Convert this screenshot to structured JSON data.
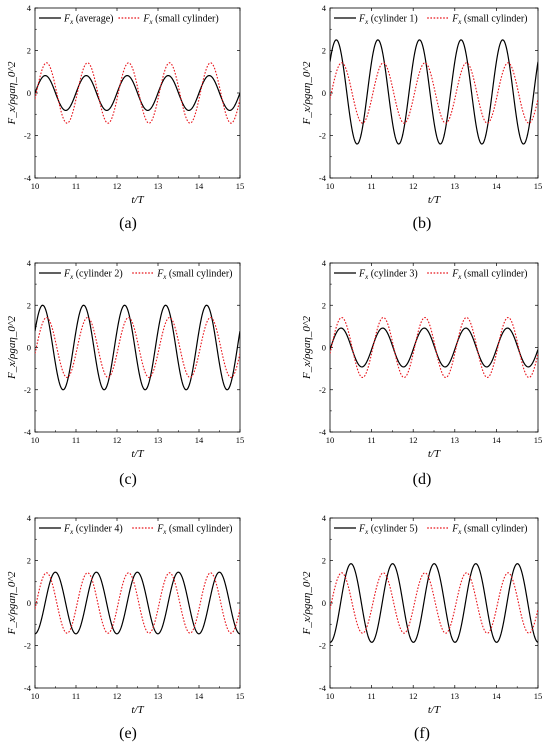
{
  "colors": {
    "primary": "#000000",
    "reference": "#e8141b"
  },
  "axes": {
    "x_label": "t/T",
    "y_label": "F_x/ρgaη_0^2",
    "xlim": [
      10,
      15
    ],
    "ylim": [
      -4,
      4
    ],
    "x_ticks": [
      "10",
      "11",
      "12",
      "13",
      "14",
      "15"
    ],
    "y_ticks": [
      "-4",
      "-2",
      "0",
      "2",
      "4"
    ]
  },
  "chart_data": [
    {
      "type": "line",
      "panel": "(a)",
      "legend_placement": "top",
      "xlim": [
        10,
        15
      ],
      "ylim": [
        -4,
        4
      ],
      "grid": false,
      "series": [
        {
          "name": "(average)",
          "style": "solid",
          "color": "#000000",
          "amplitude": 0.82,
          "phase": 0.0,
          "offset": 0.0
        },
        {
          "name": "(small cylinder)",
          "style": "dotted",
          "color": "#e8141b",
          "amplitude": 1.42,
          "phase": -0.2,
          "offset": 0.0
        }
      ]
    },
    {
      "type": "line",
      "panel": "(b)",
      "legend_placement": "top",
      "xlim": [
        10,
        15
      ],
      "ylim": [
        -4,
        4
      ],
      "grid": false,
      "series": [
        {
          "name": "(cylinder 1)",
          "style": "solid",
          "color": "#000000",
          "amplitude": 2.45,
          "phase": 0.62,
          "offset": 0.05
        },
        {
          "name": "(small cylinder)",
          "style": "dotted",
          "color": "#e8141b",
          "amplitude": 1.42,
          "phase": -0.2,
          "offset": 0.0
        }
      ]
    },
    {
      "type": "line",
      "panel": "(c)",
      "legend_placement": "top",
      "xlim": [
        10,
        15
      ],
      "ylim": [
        -4,
        4
      ],
      "grid": false,
      "series": [
        {
          "name": "(cylinder 2)",
          "style": "solid",
          "color": "#000000",
          "amplitude": 2.0,
          "phase": 0.4,
          "offset": 0.0
        },
        {
          "name": "(small cylinder)",
          "style": "dotted",
          "color": "#e8141b",
          "amplitude": 1.42,
          "phase": -0.2,
          "offset": 0.0
        }
      ]
    },
    {
      "type": "line",
      "panel": "(d)",
      "legend_placement": "top",
      "xlim": [
        10,
        15
      ],
      "ylim": [
        -4,
        4
      ],
      "grid": false,
      "series": [
        {
          "name": "(cylinder 3)",
          "style": "solid",
          "color": "#000000",
          "amplitude": 0.92,
          "phase": -0.1,
          "offset": 0.0
        },
        {
          "name": "(small cylinder)",
          "style": "dotted",
          "color": "#e8141b",
          "amplitude": 1.42,
          "phase": -0.2,
          "offset": 0.0
        }
      ]
    },
    {
      "type": "line",
      "panel": "(e)",
      "legend_placement": "top",
      "xlim": [
        10,
        15
      ],
      "ylim": [
        -4,
        4
      ],
      "grid": false,
      "series": [
        {
          "name": "(cylinder 4)",
          "style": "solid",
          "color": "#000000",
          "amplitude": 1.45,
          "phase": -1.55,
          "offset": 0.0
        },
        {
          "name": "(small cylinder)",
          "style": "dotted",
          "color": "#e8141b",
          "amplitude": 1.42,
          "phase": -0.2,
          "offset": 0.0
        }
      ]
    },
    {
      "type": "line",
      "panel": "(f)",
      "legend_placement": "top",
      "xlim": [
        10,
        15
      ],
      "ylim": [
        -4,
        4
      ],
      "grid": false,
      "series": [
        {
          "name": "(cylinder 5)",
          "style": "solid",
          "color": "#000000",
          "amplitude": 1.85,
          "phase": -1.6,
          "offset": 0.0
        },
        {
          "name": "(small cylinder)",
          "style": "dotted",
          "color": "#e8141b",
          "amplitude": 1.42,
          "phase": -0.2,
          "offset": 0.0
        }
      ]
    }
  ]
}
